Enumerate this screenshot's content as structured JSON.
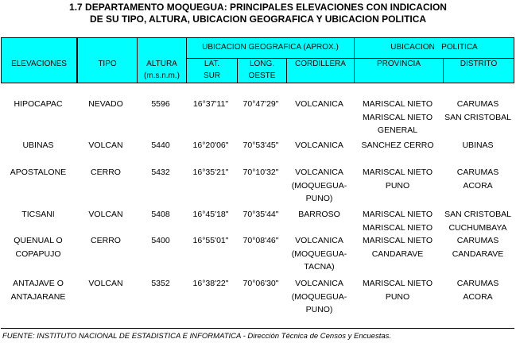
{
  "title": {
    "line1": "1.7  DEPARTAMENTO MOQUEGUA:  PRINCIPALES ELEVACIONES CON INDICACION",
    "line2": "DE SU TIPO, ALTURA, UBICACION GEOGRAFICA Y UBICACION POLITICA"
  },
  "header": {
    "elevaciones": "ELEVACIONES",
    "tipo": "TIPO",
    "altura": "ALTURA",
    "altura_unit": "(m.s.n.m.)",
    "geo_group": "UBICACION GEOGRAFICA (APROX.)",
    "lat": "LAT.",
    "lat2": "SUR",
    "long": "LONG.",
    "long2": "OESTE",
    "cordillera": "CORDILLERA",
    "pol_group": "UBICACION   POLITICA",
    "provincia": "PROVINCIA",
    "distrito": "DISTRITO"
  },
  "header_color": "#00ffff",
  "rows": [
    {
      "elevacion": [
        "HIPOCAPAC"
      ],
      "tipo": [
        "NEVADO"
      ],
      "altura": [
        "5596"
      ],
      "lat": [
        "16°37'11\""
      ],
      "long": [
        "70°47'29\""
      ],
      "cordillera": [
        "VOLCANICA"
      ],
      "provincia": [
        "MARISCAL NIETO",
        "MARISCAL NIETO",
        "GENERAL"
      ],
      "distrito": [
        "CARUMAS",
        "SAN CRISTOBAL"
      ]
    },
    {
      "elevacion": [
        "UBINAS"
      ],
      "tipo": [
        "VOLCAN"
      ],
      "altura": [
        "5440"
      ],
      "lat": [
        "16°20'06\""
      ],
      "long": [
        "70°53'45\""
      ],
      "cordillera": [
        "VOLCANICA"
      ],
      "provincia": [
        "SANCHEZ CERRO"
      ],
      "distrito": [
        "UBINAS"
      ]
    },
    {
      "elevacion": [
        "APOSTALONE"
      ],
      "tipo": [
        "CERRO"
      ],
      "altura": [
        "5432"
      ],
      "lat": [
        "16°35'21\""
      ],
      "long": [
        "70°10'32\""
      ],
      "cordillera": [
        "VOLCANICA",
        "(MOQUEGUA-",
        "PUNO)"
      ],
      "provincia": [
        "MARISCAL NIETO",
        "PUNO"
      ],
      "distrito": [
        "CARUMAS",
        "ACORA"
      ]
    },
    {
      "elevacion": [
        "TICSANI"
      ],
      "tipo": [
        "VOLCAN"
      ],
      "altura": [
        "5408"
      ],
      "lat": [
        "16°45'18\""
      ],
      "long": [
        "70°35'44\""
      ],
      "cordillera": [
        "BARROSO"
      ],
      "provincia": [
        "MARISCAL NIETO",
        "MARISCAL NIETO"
      ],
      "distrito": [
        "SAN CRISTOBAL",
        "CUCHUMBAYA"
      ]
    },
    {
      "elevacion": [
        "QUENUAL O",
        "COPAPUJO"
      ],
      "tipo": [
        "CERRO"
      ],
      "altura": [
        "5400"
      ],
      "lat": [
        "16°55'01\""
      ],
      "long": [
        "70°08'46\""
      ],
      "cordillera": [
        "VOLCANICA",
        "(MOQUEGUA-",
        "TACNA)"
      ],
      "provincia": [
        "MARISCAL NIETO",
        "CANDARAVE"
      ],
      "distrito": [
        "CARUMAS",
        "CANDARAVE"
      ]
    },
    {
      "elevacion": [
        "ANTAJAVE O",
        "ANTAJARANE"
      ],
      "tipo": [
        "VOLCAN"
      ],
      "altura": [
        "5352"
      ],
      "lat": [
        "16°38'22\""
      ],
      "long": [
        "70°06'30\""
      ],
      "cordillera": [
        "VOLCANICA",
        "(MOQUEGUA-",
        "PUNO)"
      ],
      "provincia": [
        "MARISCAL NIETO",
        "PUNO"
      ],
      "distrito": [
        "CARUMAS",
        "ACORA"
      ]
    }
  ],
  "footer": "FUENTE: INSTITUTO NACIONAL DE ESTADISTICA E INFORMATICA - Dirección Técnica de Censos y Encuestas."
}
